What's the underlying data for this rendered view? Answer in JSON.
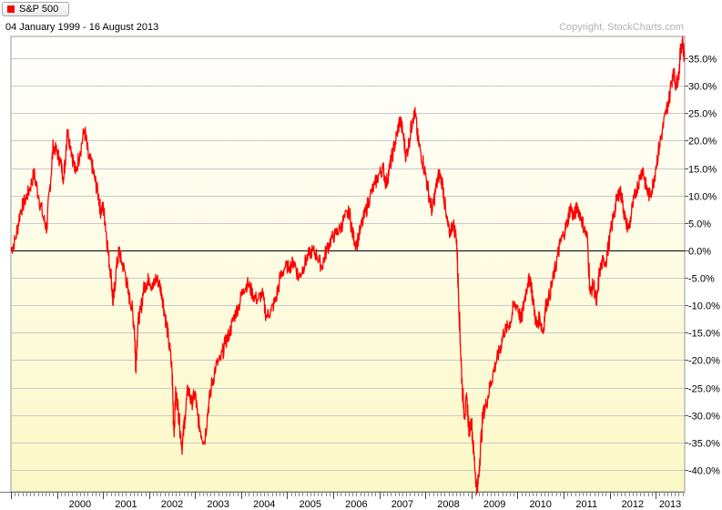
{
  "legend": {
    "label": "S&P 500",
    "color": "#ff0000"
  },
  "header": {
    "date_range": "04 January 1999 - 16 August 2013",
    "copyright": "Copyright, StockCharts.com"
  },
  "colors": {
    "line": "#ff0000",
    "bg_top": "#ffffff",
    "bg_bottom": "#fbf8c6",
    "grid": "#c9c9c9",
    "zero_line": "#000000"
  },
  "chart_data": {
    "type": "line",
    "title": "S&P 500",
    "subtitle": "04 January 1999 - 16 August 2013",
    "xlabel": "",
    "ylabel": "",
    "y_unit": "%",
    "ylim": [
      -44,
      39
    ],
    "xlim": [
      1999.0,
      2013.63
    ],
    "grid": true,
    "legend_position": "top-left",
    "y_ticks": [
      {
        "value": 35,
        "label": "35.0%"
      },
      {
        "value": 30,
        "label": "30.0%"
      },
      {
        "value": 25,
        "label": "25.0%"
      },
      {
        "value": 20,
        "label": "20.0%"
      },
      {
        "value": 15,
        "label": "15.0%"
      },
      {
        "value": 10,
        "label": "10.0%"
      },
      {
        "value": 5,
        "label": "5.0%"
      },
      {
        "value": 0,
        "label": "0.0%"
      },
      {
        "value": -5,
        "label": "-5.0%"
      },
      {
        "value": -10,
        "label": "-10.0%"
      },
      {
        "value": -15,
        "label": "-15.0%"
      },
      {
        "value": -20,
        "label": "-20.0%"
      },
      {
        "value": -25,
        "label": "-25.0%"
      },
      {
        "value": -30,
        "label": "-30.0%"
      },
      {
        "value": -35,
        "label": "-35.0%"
      },
      {
        "value": -40,
        "label": "-40.0%"
      }
    ],
    "x_ticks": [
      {
        "value": 2000,
        "label": "2000"
      },
      {
        "value": 2001,
        "label": "2001"
      },
      {
        "value": 2002,
        "label": "2002"
      },
      {
        "value": 2003,
        "label": "2003"
      },
      {
        "value": 2004,
        "label": "2004"
      },
      {
        "value": 2005,
        "label": "2005"
      },
      {
        "value": 2006,
        "label": "2006"
      },
      {
        "value": 2007,
        "label": "2007"
      },
      {
        "value": 2008,
        "label": "2008"
      },
      {
        "value": 2009,
        "label": "2009"
      },
      {
        "value": 2010,
        "label": "2010"
      },
      {
        "value": 2011,
        "label": "2011"
      },
      {
        "value": 2012,
        "label": "2012"
      },
      {
        "value": 2013,
        "label": "2013"
      }
    ],
    "series": [
      {
        "name": "S&P 500",
        "color": "#ff0000",
        "points": [
          [
            1999.0,
            0
          ],
          [
            1999.1,
            2
          ],
          [
            1999.2,
            7
          ],
          [
            1999.3,
            9
          ],
          [
            1999.4,
            11
          ],
          [
            1999.5,
            14
          ],
          [
            1999.6,
            10
          ],
          [
            1999.7,
            6
          ],
          [
            1999.78,
            4
          ],
          [
            1999.85,
            12
          ],
          [
            1999.92,
            19
          ],
          [
            2000.0,
            18
          ],
          [
            2000.08,
            16
          ],
          [
            2000.15,
            13
          ],
          [
            2000.22,
            22
          ],
          [
            2000.3,
            19
          ],
          [
            2000.4,
            14
          ],
          [
            2000.5,
            18
          ],
          [
            2000.6,
            22
          ],
          [
            2000.68,
            17
          ],
          [
            2000.75,
            16
          ],
          [
            2000.82,
            13
          ],
          [
            2000.9,
            10
          ],
          [
            2000.95,
            7
          ],
          [
            2001.0,
            8
          ],
          [
            2001.05,
            5
          ],
          [
            2001.12,
            -1
          ],
          [
            2001.18,
            -5
          ],
          [
            2001.22,
            -10
          ],
          [
            2001.28,
            -4
          ],
          [
            2001.35,
            0
          ],
          [
            2001.4,
            -2
          ],
          [
            2001.48,
            -4
          ],
          [
            2001.55,
            -8
          ],
          [
            2001.62,
            -10
          ],
          [
            2001.68,
            -14
          ],
          [
            2001.71,
            -21
          ],
          [
            2001.76,
            -13
          ],
          [
            2001.82,
            -11
          ],
          [
            2001.88,
            -7
          ],
          [
            2001.95,
            -6
          ],
          [
            2002.0,
            -5
          ],
          [
            2002.08,
            -7
          ],
          [
            2002.15,
            -5
          ],
          [
            2002.22,
            -6
          ],
          [
            2002.28,
            -8
          ],
          [
            2002.35,
            -12
          ],
          [
            2002.42,
            -16
          ],
          [
            2002.5,
            -22
          ],
          [
            2002.54,
            -33
          ],
          [
            2002.58,
            -26
          ],
          [
            2002.62,
            -28
          ],
          [
            2002.68,
            -33
          ],
          [
            2002.72,
            -36
          ],
          [
            2002.78,
            -30
          ],
          [
            2002.85,
            -25
          ],
          [
            2002.92,
            -28
          ],
          [
            2003.0,
            -26
          ],
          [
            2003.05,
            -30
          ],
          [
            2003.12,
            -33
          ],
          [
            2003.2,
            -35
          ],
          [
            2003.28,
            -29
          ],
          [
            2003.35,
            -25
          ],
          [
            2003.45,
            -21
          ],
          [
            2003.55,
            -20
          ],
          [
            2003.65,
            -17
          ],
          [
            2003.75,
            -15
          ],
          [
            2003.85,
            -12
          ],
          [
            2003.95,
            -10
          ],
          [
            2004.05,
            -7
          ],
          [
            2004.15,
            -6
          ],
          [
            2004.25,
            -8
          ],
          [
            2004.35,
            -9
          ],
          [
            2004.45,
            -8
          ],
          [
            2004.55,
            -12
          ],
          [
            2004.65,
            -11
          ],
          [
            2004.75,
            -9
          ],
          [
            2004.85,
            -5
          ],
          [
            2004.95,
            -3
          ],
          [
            2005.05,
            -3
          ],
          [
            2005.15,
            -2
          ],
          [
            2005.25,
            -5
          ],
          [
            2005.35,
            -3
          ],
          [
            2005.45,
            -1
          ],
          [
            2005.55,
            0
          ],
          [
            2005.65,
            -1
          ],
          [
            2005.75,
            -3
          ],
          [
            2005.85,
            0
          ],
          [
            2005.95,
            2
          ],
          [
            2006.05,
            3
          ],
          [
            2006.15,
            4
          ],
          [
            2006.25,
            6
          ],
          [
            2006.35,
            7
          ],
          [
            2006.42,
            3
          ],
          [
            2006.5,
            1
          ],
          [
            2006.6,
            4
          ],
          [
            2006.7,
            7
          ],
          [
            2006.8,
            10
          ],
          [
            2006.9,
            12
          ],
          [
            2007.0,
            14
          ],
          [
            2007.08,
            15
          ],
          [
            2007.15,
            12
          ],
          [
            2007.22,
            15
          ],
          [
            2007.3,
            18
          ],
          [
            2007.38,
            21
          ],
          [
            2007.45,
            24
          ],
          [
            2007.52,
            21
          ],
          [
            2007.58,
            17
          ],
          [
            2007.65,
            20
          ],
          [
            2007.72,
            24
          ],
          [
            2007.78,
            25
          ],
          [
            2007.84,
            20
          ],
          [
            2007.9,
            18
          ],
          [
            2008.0,
            14
          ],
          [
            2008.08,
            10
          ],
          [
            2008.15,
            7
          ],
          [
            2008.22,
            11
          ],
          [
            2008.3,
            14
          ],
          [
            2008.38,
            12
          ],
          [
            2008.45,
            6
          ],
          [
            2008.52,
            3
          ],
          [
            2008.6,
            5
          ],
          [
            2008.68,
            2
          ],
          [
            2008.72,
            -8
          ],
          [
            2008.76,
            -17
          ],
          [
            2008.8,
            -25
          ],
          [
            2008.85,
            -30
          ],
          [
            2008.9,
            -27
          ],
          [
            2008.95,
            -33
          ],
          [
            2009.0,
            -31
          ],
          [
            2009.05,
            -37
          ],
          [
            2009.1,
            -42
          ],
          [
            2009.13,
            -44
          ],
          [
            2009.18,
            -38
          ],
          [
            2009.25,
            -30
          ],
          [
            2009.32,
            -28
          ],
          [
            2009.4,
            -25
          ],
          [
            2009.48,
            -22
          ],
          [
            2009.55,
            -20
          ],
          [
            2009.62,
            -18
          ],
          [
            2009.7,
            -15
          ],
          [
            2009.78,
            -14
          ],
          [
            2009.85,
            -13
          ],
          [
            2009.92,
            -10
          ],
          [
            2010.0,
            -10
          ],
          [
            2010.08,
            -13
          ],
          [
            2010.15,
            -9
          ],
          [
            2010.22,
            -6
          ],
          [
            2010.28,
            -5
          ],
          [
            2010.35,
            -10
          ],
          [
            2010.42,
            -14
          ],
          [
            2010.48,
            -12
          ],
          [
            2010.55,
            -15
          ],
          [
            2010.62,
            -10
          ],
          [
            2010.7,
            -8
          ],
          [
            2010.78,
            -5
          ],
          [
            2010.85,
            -2
          ],
          [
            2010.92,
            1
          ],
          [
            2011.0,
            3
          ],
          [
            2011.08,
            5
          ],
          [
            2011.15,
            8
          ],
          [
            2011.22,
            6
          ],
          [
            2011.3,
            8
          ],
          [
            2011.38,
            6
          ],
          [
            2011.45,
            4
          ],
          [
            2011.52,
            2
          ],
          [
            2011.58,
            -8
          ],
          [
            2011.65,
            -6
          ],
          [
            2011.72,
            -10
          ],
          [
            2011.78,
            -4
          ],
          [
            2011.85,
            -2
          ],
          [
            2011.92,
            -2
          ],
          [
            2012.0,
            2
          ],
          [
            2012.08,
            6
          ],
          [
            2012.15,
            9
          ],
          [
            2012.22,
            11
          ],
          [
            2012.28,
            9
          ],
          [
            2012.35,
            5
          ],
          [
            2012.42,
            4
          ],
          [
            2012.5,
            8
          ],
          [
            2012.58,
            11
          ],
          [
            2012.65,
            13
          ],
          [
            2012.72,
            15
          ],
          [
            2012.78,
            12
          ],
          [
            2012.85,
            10
          ],
          [
            2012.92,
            11
          ],
          [
            2013.0,
            15
          ],
          [
            2013.08,
            19
          ],
          [
            2013.15,
            22
          ],
          [
            2013.22,
            25
          ],
          [
            2013.3,
            28
          ],
          [
            2013.38,
            33
          ],
          [
            2013.44,
            30
          ],
          [
            2013.5,
            32
          ],
          [
            2013.55,
            37
          ],
          [
            2013.58,
            38
          ],
          [
            2013.63,
            35
          ]
        ]
      }
    ]
  }
}
